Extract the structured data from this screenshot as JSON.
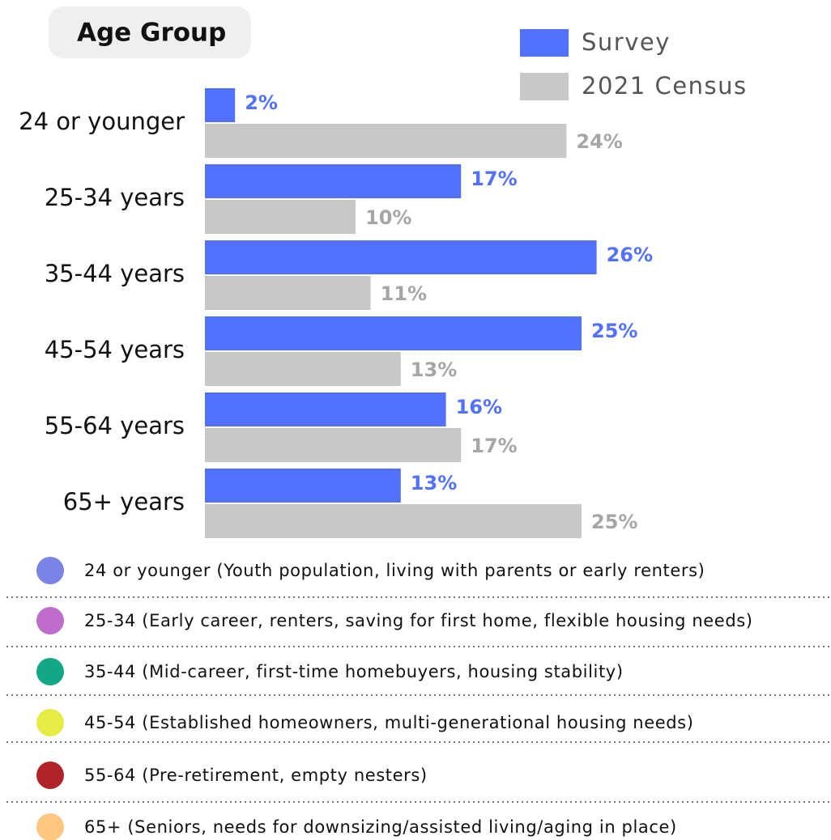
{
  "chart_data": {
    "type": "bar",
    "orientation": "horizontal",
    "title": "Age Group",
    "categories": [
      "24 or younger",
      "25-34 years",
      "35-44 years",
      "45-54 years",
      "55-64 years",
      "65+ years"
    ],
    "series": [
      {
        "name": "Survey",
        "color": "#5271ff",
        "values": [
          2,
          17,
          26,
          25,
          16,
          13
        ],
        "value_labels": [
          "2%",
          "17%",
          "26%",
          "25%",
          "16%",
          "13%"
        ]
      },
      {
        "name": "2021 Census",
        "color": "#c8c8c8",
        "values": [
          24,
          10,
          11,
          13,
          17,
          25
        ],
        "value_labels": [
          "24%",
          "10%",
          "11%",
          "13%",
          "17%",
          "25%"
        ]
      }
    ],
    "legend": "top-right",
    "grid": false
  },
  "notes": [
    {
      "color": "#7b82e8",
      "text": "24 or younger (Youth population, living with parents or early renters)"
    },
    {
      "color": "#bf6ccf",
      "text": "25-34 (Early career, renters, saving for first home, flexible housing needs)"
    },
    {
      "color": "#12a886",
      "text": "35-44 (Mid-career, first-time homebuyers, housing stability)"
    },
    {
      "color": "#e4ec45",
      "text": "45-54 (Established homeowners, multi-generational housing needs)"
    },
    {
      "color": "#b02427",
      "text": "55-64 (Pre-retirement, empty nesters)"
    },
    {
      "color": "#fdc77f",
      "text": "65+ (Seniors, needs for downsizing/assisted living/aging in place)"
    }
  ]
}
